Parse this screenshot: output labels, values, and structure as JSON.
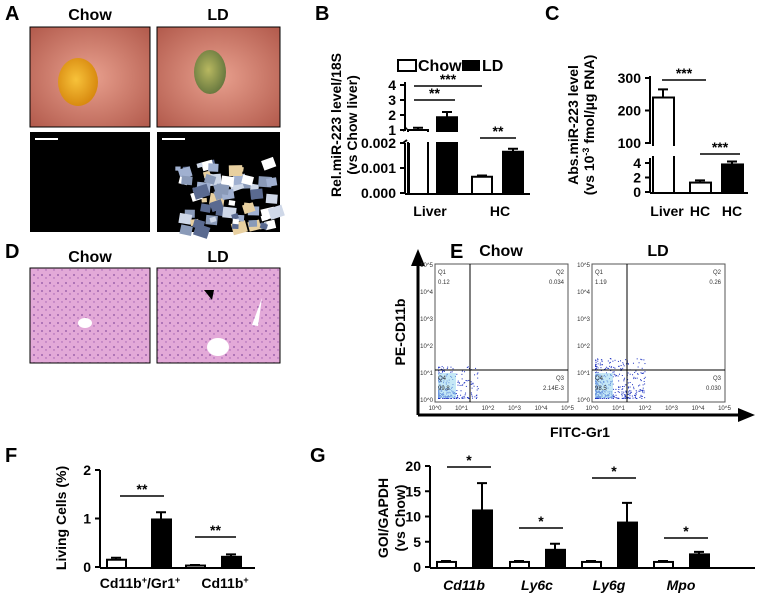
{
  "panels": {
    "A": {
      "label": "A",
      "col1": "Chow",
      "col2": "LD"
    },
    "B": {
      "label": "B"
    },
    "C": {
      "label": "C"
    },
    "D": {
      "label": "D",
      "col1": "Chow",
      "col2": "LD"
    },
    "E": {
      "label": "E",
      "col1": "Chow",
      "col2": "LD",
      "xlabel": "FITC-Gr1",
      "ylabel": "PE-CD11b",
      "ticks": [
        "10^0",
        "10^1",
        "10^2",
        "10^3",
        "10^4",
        "10^5"
      ],
      "plots": [
        {
          "title": "Chow",
          "Q1": "Q1",
          "Q1v": "0.12",
          "Q2": "Q2",
          "Q2v": "0.034",
          "Q3": "Q3",
          "Q3v": "2.14E-3",
          "Q4": "Q4",
          "Q4v": "99.8"
        },
        {
          "title": "LD",
          "Q1": "Q1",
          "Q1v": "1.19",
          "Q2": "Q2",
          "Q2v": "0.26",
          "Q3": "Q3",
          "Q3v": "0.030",
          "Q4": "Q4",
          "Q4v": "98.5"
        }
      ]
    },
    "F": {
      "label": "F"
    },
    "G": {
      "label": "G"
    }
  },
  "colors": {
    "chow": "#ffffff",
    "ld": "#000000",
    "flow": "#1a2fc0"
  },
  "chart_data": [
    {
      "panel": "B",
      "type": "bar",
      "ylabel": "Rel.miR-223 level/18S",
      "ylabel2": "(vs Chow liver)",
      "broken_axis": true,
      "legend": [
        "Chow",
        "LD"
      ],
      "legend_placement": "top",
      "categories": [
        "Liver",
        "HC"
      ],
      "yticks_upper": [
        "1",
        "2",
        "3",
        "4"
      ],
      "yticks_lower": [
        "0.000",
        "0.001",
        "0.002"
      ],
      "series": [
        {
          "name": "Chow",
          "values": [
            1.0,
            0.00065
          ],
          "errors": [
            0.15,
            5e-05
          ]
        },
        {
          "name": "LD",
          "values": [
            1.85,
            0.00165
          ],
          "errors": [
            0.35,
            0.00012
          ]
        }
      ],
      "annotations": [
        {
          "text": "***",
          "from": [
            0,
            0
          ],
          "to": [
            1,
            0
          ]
        },
        {
          "text": "**",
          "from": [
            0,
            0
          ],
          "to": [
            0,
            1
          ]
        },
        {
          "text": "**",
          "from": [
            1,
            0
          ],
          "to": [
            1,
            1
          ]
        }
      ]
    },
    {
      "panel": "C",
      "type": "bar",
      "ylabel": "Abs.miR-223 level",
      "ylabel2": "(vs 10",
      "ylabel_sup": "-3",
      "ylabel3": " fmol/µg RNA)",
      "broken_axis": true,
      "categories": [
        "Liver",
        "HC",
        "HC"
      ],
      "yticks_upper": [
        "100",
        "200",
        "300"
      ],
      "yticks_lower": [
        "0",
        "2",
        "4"
      ],
      "bars": [
        {
          "value": 240,
          "error": 25,
          "fill": "white"
        },
        {
          "value": 1.3,
          "error": 0.3,
          "fill": "white"
        },
        {
          "value": 3.8,
          "error": 0.4,
          "fill": "black"
        }
      ],
      "annotations": [
        {
          "text": "***",
          "from": 0,
          "to": 1
        },
        {
          "text": "***",
          "from": 1,
          "to": 2
        }
      ]
    },
    {
      "panel": "F",
      "type": "bar",
      "ylabel": "Living Cells (%)",
      "ylim": [
        0,
        2
      ],
      "yticks": [
        "0",
        "1",
        "2"
      ],
      "categories": [
        {
          "main": "Cd11b",
          "sup": "+",
          "mid": "/Gr1",
          "sup2": "+"
        },
        {
          "main": "Cd11b",
          "sup": "+"
        }
      ],
      "series": [
        {
          "name": "Chow",
          "values": [
            0.15,
            0.03
          ],
          "errors": [
            0.04,
            0.01
          ]
        },
        {
          "name": "LD",
          "values": [
            0.98,
            0.21
          ],
          "errors": [
            0.15,
            0.05
          ]
        }
      ],
      "annotations": [
        "**",
        "**"
      ]
    },
    {
      "panel": "G",
      "type": "bar",
      "ylabel": "GOI/GAPDH",
      "ylabel2": "(vs Chow)",
      "ylim": [
        0,
        20
      ],
      "yticks": [
        "0",
        "5",
        "10",
        "15",
        "20"
      ],
      "categories": [
        "Cd11b",
        "Ly6c",
        "Ly6g",
        "Mpo"
      ],
      "series": [
        {
          "name": "Chow",
          "values": [
            1,
            1,
            1,
            1
          ],
          "errors": [
            0.2,
            0.2,
            0.2,
            0.2
          ]
        },
        {
          "name": "LD",
          "values": [
            11.2,
            3.4,
            8.8,
            2.5
          ],
          "errors": [
            5.4,
            1.2,
            3.9,
            0.5
          ]
        }
      ],
      "annotations": [
        "*",
        "*",
        "*",
        "*"
      ]
    }
  ]
}
